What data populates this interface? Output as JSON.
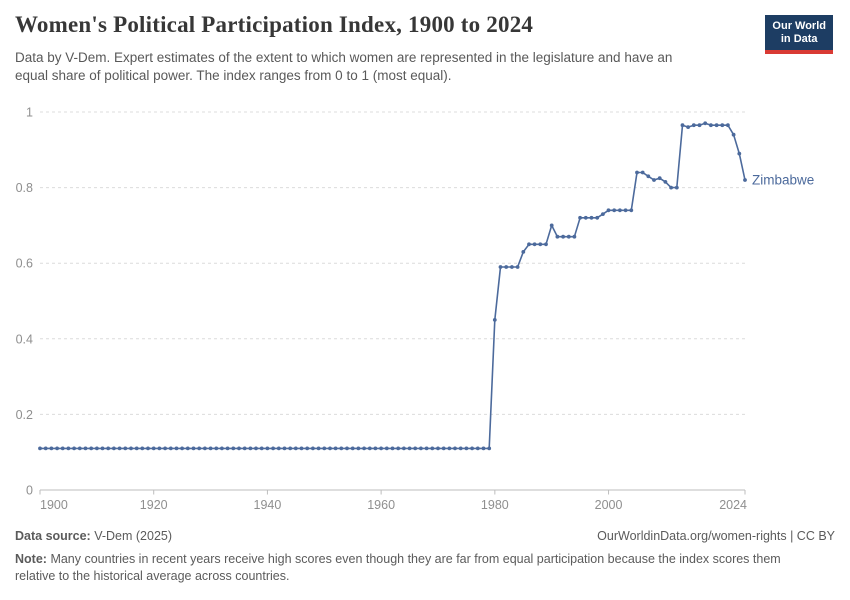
{
  "header": {
    "title": "Women's Political Participation Index, 1900 to 2024",
    "subtitle_line1": "Data by V-Dem. Expert estimates of the extent to which women are represented in the legislature and have an",
    "subtitle_line2": "equal share of political power. The index ranges from 0 to 1 (most equal).",
    "logo_line1": "Our World",
    "logo_line2": "in Data",
    "logo_bg_color": "#1d3d63",
    "logo_accent_color": "#d93a34"
  },
  "chart_data": {
    "type": "line",
    "title": "Women's Political Participation Index, 1900 to 2024",
    "xlabel": "",
    "ylabel": "",
    "xlim": [
      1900,
      2024
    ],
    "ylim": [
      0,
      1
    ],
    "x_ticks": [
      1900,
      1920,
      1940,
      1960,
      1980,
      2000,
      2024
    ],
    "y_ticks": [
      0,
      0.2,
      0.4,
      0.6,
      0.8,
      1
    ],
    "grid": "horizontal-dashed",
    "legend_position": "end-of-line-label",
    "line_color": "#4C6A9C",
    "grid_color": "#dcdcdc",
    "axis_color": "#bdbdbd",
    "tick_label_color": "#8f8f8f",
    "series": [
      {
        "name": "Zimbabwe",
        "color": "#4C6A9C",
        "points": [
          [
            1900,
            0.11
          ],
          [
            1901,
            0.11
          ],
          [
            1902,
            0.11
          ],
          [
            1903,
            0.11
          ],
          [
            1904,
            0.11
          ],
          [
            1905,
            0.11
          ],
          [
            1906,
            0.11
          ],
          [
            1907,
            0.11
          ],
          [
            1908,
            0.11
          ],
          [
            1909,
            0.11
          ],
          [
            1910,
            0.11
          ],
          [
            1911,
            0.11
          ],
          [
            1912,
            0.11
          ],
          [
            1913,
            0.11
          ],
          [
            1914,
            0.11
          ],
          [
            1915,
            0.11
          ],
          [
            1916,
            0.11
          ],
          [
            1917,
            0.11
          ],
          [
            1918,
            0.11
          ],
          [
            1919,
            0.11
          ],
          [
            1920,
            0.11
          ],
          [
            1921,
            0.11
          ],
          [
            1922,
            0.11
          ],
          [
            1923,
            0.11
          ],
          [
            1924,
            0.11
          ],
          [
            1925,
            0.11
          ],
          [
            1926,
            0.11
          ],
          [
            1927,
            0.11
          ],
          [
            1928,
            0.11
          ],
          [
            1929,
            0.11
          ],
          [
            1930,
            0.11
          ],
          [
            1931,
            0.11
          ],
          [
            1932,
            0.11
          ],
          [
            1933,
            0.11
          ],
          [
            1934,
            0.11
          ],
          [
            1935,
            0.11
          ],
          [
            1936,
            0.11
          ],
          [
            1937,
            0.11
          ],
          [
            1938,
            0.11
          ],
          [
            1939,
            0.11
          ],
          [
            1940,
            0.11
          ],
          [
            1941,
            0.11
          ],
          [
            1942,
            0.11
          ],
          [
            1943,
            0.11
          ],
          [
            1944,
            0.11
          ],
          [
            1945,
            0.11
          ],
          [
            1946,
            0.11
          ],
          [
            1947,
            0.11
          ],
          [
            1948,
            0.11
          ],
          [
            1949,
            0.11
          ],
          [
            1950,
            0.11
          ],
          [
            1951,
            0.11
          ],
          [
            1952,
            0.11
          ],
          [
            1953,
            0.11
          ],
          [
            1954,
            0.11
          ],
          [
            1955,
            0.11
          ],
          [
            1956,
            0.11
          ],
          [
            1957,
            0.11
          ],
          [
            1958,
            0.11
          ],
          [
            1959,
            0.11
          ],
          [
            1960,
            0.11
          ],
          [
            1961,
            0.11
          ],
          [
            1962,
            0.11
          ],
          [
            1963,
            0.11
          ],
          [
            1964,
            0.11
          ],
          [
            1965,
            0.11
          ],
          [
            1966,
            0.11
          ],
          [
            1967,
            0.11
          ],
          [
            1968,
            0.11
          ],
          [
            1969,
            0.11
          ],
          [
            1970,
            0.11
          ],
          [
            1971,
            0.11
          ],
          [
            1972,
            0.11
          ],
          [
            1973,
            0.11
          ],
          [
            1974,
            0.11
          ],
          [
            1975,
            0.11
          ],
          [
            1976,
            0.11
          ],
          [
            1977,
            0.11
          ],
          [
            1978,
            0.11
          ],
          [
            1979,
            0.11
          ],
          [
            1980,
            0.45
          ],
          [
            1981,
            0.59
          ],
          [
            1982,
            0.59
          ],
          [
            1983,
            0.59
          ],
          [
            1984,
            0.59
          ],
          [
            1985,
            0.63
          ],
          [
            1986,
            0.65
          ],
          [
            1987,
            0.65
          ],
          [
            1988,
            0.65
          ],
          [
            1989,
            0.65
          ],
          [
            1990,
            0.7
          ],
          [
            1991,
            0.67
          ],
          [
            1992,
            0.67
          ],
          [
            1993,
            0.67
          ],
          [
            1994,
            0.67
          ],
          [
            1995,
            0.72
          ],
          [
            1996,
            0.72
          ],
          [
            1997,
            0.72
          ],
          [
            1998,
            0.72
          ],
          [
            1999,
            0.73
          ],
          [
            2000,
            0.74
          ],
          [
            2001,
            0.74
          ],
          [
            2002,
            0.74
          ],
          [
            2003,
            0.74
          ],
          [
            2004,
            0.74
          ],
          [
            2005,
            0.84
          ],
          [
            2006,
            0.84
          ],
          [
            2007,
            0.83
          ],
          [
            2008,
            0.82
          ],
          [
            2009,
            0.825
          ],
          [
            2010,
            0.815
          ],
          [
            2011,
            0.8
          ],
          [
            2012,
            0.8
          ],
          [
            2013,
            0.965
          ],
          [
            2014,
            0.96
          ],
          [
            2015,
            0.965
          ],
          [
            2016,
            0.965
          ],
          [
            2017,
            0.97
          ],
          [
            2018,
            0.965
          ],
          [
            2019,
            0.965
          ],
          [
            2020,
            0.965
          ],
          [
            2021,
            0.965
          ],
          [
            2022,
            0.94
          ],
          [
            2023,
            0.89
          ],
          [
            2024,
            0.82
          ]
        ]
      }
    ]
  },
  "footer": {
    "source_label": "Data source:",
    "source_value": " V-Dem (2025)",
    "link": "OurWorldinData.org/women-rights | CC BY",
    "note_label": "Note:",
    "note_line1": "Many countries in recent years receive high scores even though they are far from equal participation because the index scores them",
    "note_line2": "relative to the historical average across countries."
  }
}
